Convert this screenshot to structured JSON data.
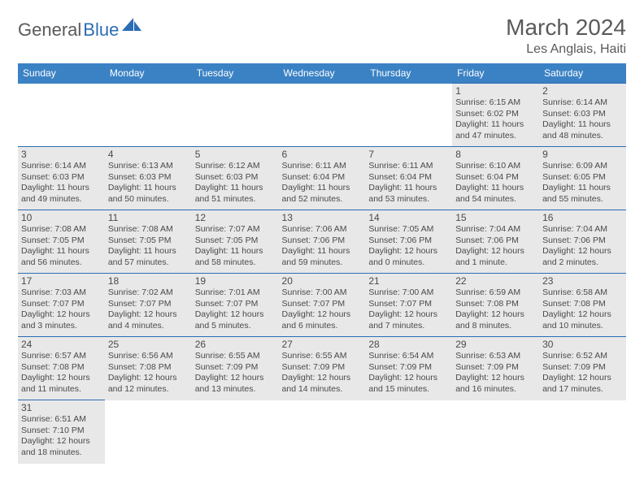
{
  "logo": {
    "part1": "General",
    "part2": "Blue",
    "color1": "#5a5a5a",
    "color2": "#2c6db5",
    "sail_color": "#2c6db5"
  },
  "header": {
    "month_title": "March 2024",
    "location": "Les Anglais, Haiti",
    "title_color": "#5a5a5a",
    "title_fontsize": 28,
    "location_fontsize": 16
  },
  "calendar": {
    "header_bg": "#3b82c4",
    "header_color": "#ffffff",
    "shade_bg": "#e8e8e8",
    "border_color": "#2c6db5",
    "text_color": "#4a4a4a",
    "day_fontsize": 12,
    "info_fontsize": 10.5,
    "days_of_week": [
      "Sunday",
      "Monday",
      "Tuesday",
      "Wednesday",
      "Thursday",
      "Friday",
      "Saturday"
    ],
    "weeks": [
      [
        {
          "empty": true
        },
        {
          "empty": true
        },
        {
          "empty": true
        },
        {
          "empty": true
        },
        {
          "empty": true
        },
        {
          "num": "1",
          "shaded": true,
          "sunrise": "Sunrise: 6:15 AM",
          "sunset": "Sunset: 6:02 PM",
          "daylight": "Daylight: 11 hours and 47 minutes."
        },
        {
          "num": "2",
          "shaded": true,
          "sunrise": "Sunrise: 6:14 AM",
          "sunset": "Sunset: 6:03 PM",
          "daylight": "Daylight: 11 hours and 48 minutes."
        }
      ],
      [
        {
          "num": "3",
          "shaded": true,
          "sunrise": "Sunrise: 6:14 AM",
          "sunset": "Sunset: 6:03 PM",
          "daylight": "Daylight: 11 hours and 49 minutes."
        },
        {
          "num": "4",
          "shaded": true,
          "sunrise": "Sunrise: 6:13 AM",
          "sunset": "Sunset: 6:03 PM",
          "daylight": "Daylight: 11 hours and 50 minutes."
        },
        {
          "num": "5",
          "shaded": true,
          "sunrise": "Sunrise: 6:12 AM",
          "sunset": "Sunset: 6:03 PM",
          "daylight": "Daylight: 11 hours and 51 minutes."
        },
        {
          "num": "6",
          "shaded": true,
          "sunrise": "Sunrise: 6:11 AM",
          "sunset": "Sunset: 6:04 PM",
          "daylight": "Daylight: 11 hours and 52 minutes."
        },
        {
          "num": "7",
          "shaded": true,
          "sunrise": "Sunrise: 6:11 AM",
          "sunset": "Sunset: 6:04 PM",
          "daylight": "Daylight: 11 hours and 53 minutes."
        },
        {
          "num": "8",
          "shaded": true,
          "sunrise": "Sunrise: 6:10 AM",
          "sunset": "Sunset: 6:04 PM",
          "daylight": "Daylight: 11 hours and 54 minutes."
        },
        {
          "num": "9",
          "shaded": true,
          "sunrise": "Sunrise: 6:09 AM",
          "sunset": "Sunset: 6:05 PM",
          "daylight": "Daylight: 11 hours and 55 minutes."
        }
      ],
      [
        {
          "num": "10",
          "shaded": true,
          "sunrise": "Sunrise: 7:08 AM",
          "sunset": "Sunset: 7:05 PM",
          "daylight": "Daylight: 11 hours and 56 minutes."
        },
        {
          "num": "11",
          "shaded": true,
          "sunrise": "Sunrise: 7:08 AM",
          "sunset": "Sunset: 7:05 PM",
          "daylight": "Daylight: 11 hours and 57 minutes."
        },
        {
          "num": "12",
          "shaded": true,
          "sunrise": "Sunrise: 7:07 AM",
          "sunset": "Sunset: 7:05 PM",
          "daylight": "Daylight: 11 hours and 58 minutes."
        },
        {
          "num": "13",
          "shaded": true,
          "sunrise": "Sunrise: 7:06 AM",
          "sunset": "Sunset: 7:06 PM",
          "daylight": "Daylight: 11 hours and 59 minutes."
        },
        {
          "num": "14",
          "shaded": true,
          "sunrise": "Sunrise: 7:05 AM",
          "sunset": "Sunset: 7:06 PM",
          "daylight": "Daylight: 12 hours and 0 minutes."
        },
        {
          "num": "15",
          "shaded": true,
          "sunrise": "Sunrise: 7:04 AM",
          "sunset": "Sunset: 7:06 PM",
          "daylight": "Daylight: 12 hours and 1 minute."
        },
        {
          "num": "16",
          "shaded": true,
          "sunrise": "Sunrise: 7:04 AM",
          "sunset": "Sunset: 7:06 PM",
          "daylight": "Daylight: 12 hours and 2 minutes."
        }
      ],
      [
        {
          "num": "17",
          "shaded": true,
          "sunrise": "Sunrise: 7:03 AM",
          "sunset": "Sunset: 7:07 PM",
          "daylight": "Daylight: 12 hours and 3 minutes."
        },
        {
          "num": "18",
          "shaded": true,
          "sunrise": "Sunrise: 7:02 AM",
          "sunset": "Sunset: 7:07 PM",
          "daylight": "Daylight: 12 hours and 4 minutes."
        },
        {
          "num": "19",
          "shaded": true,
          "sunrise": "Sunrise: 7:01 AM",
          "sunset": "Sunset: 7:07 PM",
          "daylight": "Daylight: 12 hours and 5 minutes."
        },
        {
          "num": "20",
          "shaded": true,
          "sunrise": "Sunrise: 7:00 AM",
          "sunset": "Sunset: 7:07 PM",
          "daylight": "Daylight: 12 hours and 6 minutes."
        },
        {
          "num": "21",
          "shaded": true,
          "sunrise": "Sunrise: 7:00 AM",
          "sunset": "Sunset: 7:07 PM",
          "daylight": "Daylight: 12 hours and 7 minutes."
        },
        {
          "num": "22",
          "shaded": true,
          "sunrise": "Sunrise: 6:59 AM",
          "sunset": "Sunset: 7:08 PM",
          "daylight": "Daylight: 12 hours and 8 minutes."
        },
        {
          "num": "23",
          "shaded": true,
          "sunrise": "Sunrise: 6:58 AM",
          "sunset": "Sunset: 7:08 PM",
          "daylight": "Daylight: 12 hours and 10 minutes."
        }
      ],
      [
        {
          "num": "24",
          "shaded": true,
          "sunrise": "Sunrise: 6:57 AM",
          "sunset": "Sunset: 7:08 PM",
          "daylight": "Daylight: 12 hours and 11 minutes."
        },
        {
          "num": "25",
          "shaded": true,
          "sunrise": "Sunrise: 6:56 AM",
          "sunset": "Sunset: 7:08 PM",
          "daylight": "Daylight: 12 hours and 12 minutes."
        },
        {
          "num": "26",
          "shaded": true,
          "sunrise": "Sunrise: 6:55 AM",
          "sunset": "Sunset: 7:09 PM",
          "daylight": "Daylight: 12 hours and 13 minutes."
        },
        {
          "num": "27",
          "shaded": true,
          "sunrise": "Sunrise: 6:55 AM",
          "sunset": "Sunset: 7:09 PM",
          "daylight": "Daylight: 12 hours and 14 minutes."
        },
        {
          "num": "28",
          "shaded": true,
          "sunrise": "Sunrise: 6:54 AM",
          "sunset": "Sunset: 7:09 PM",
          "daylight": "Daylight: 12 hours and 15 minutes."
        },
        {
          "num": "29",
          "shaded": true,
          "sunrise": "Sunrise: 6:53 AM",
          "sunset": "Sunset: 7:09 PM",
          "daylight": "Daylight: 12 hours and 16 minutes."
        },
        {
          "num": "30",
          "shaded": true,
          "sunrise": "Sunrise: 6:52 AM",
          "sunset": "Sunset: 7:09 PM",
          "daylight": "Daylight: 12 hours and 17 minutes."
        }
      ],
      [
        {
          "num": "31",
          "shaded": true,
          "sunrise": "Sunrise: 6:51 AM",
          "sunset": "Sunset: 7:10 PM",
          "daylight": "Daylight: 12 hours and 18 minutes."
        },
        {
          "empty": true
        },
        {
          "empty": true
        },
        {
          "empty": true
        },
        {
          "empty": true
        },
        {
          "empty": true
        },
        {
          "empty": true
        }
      ]
    ]
  }
}
